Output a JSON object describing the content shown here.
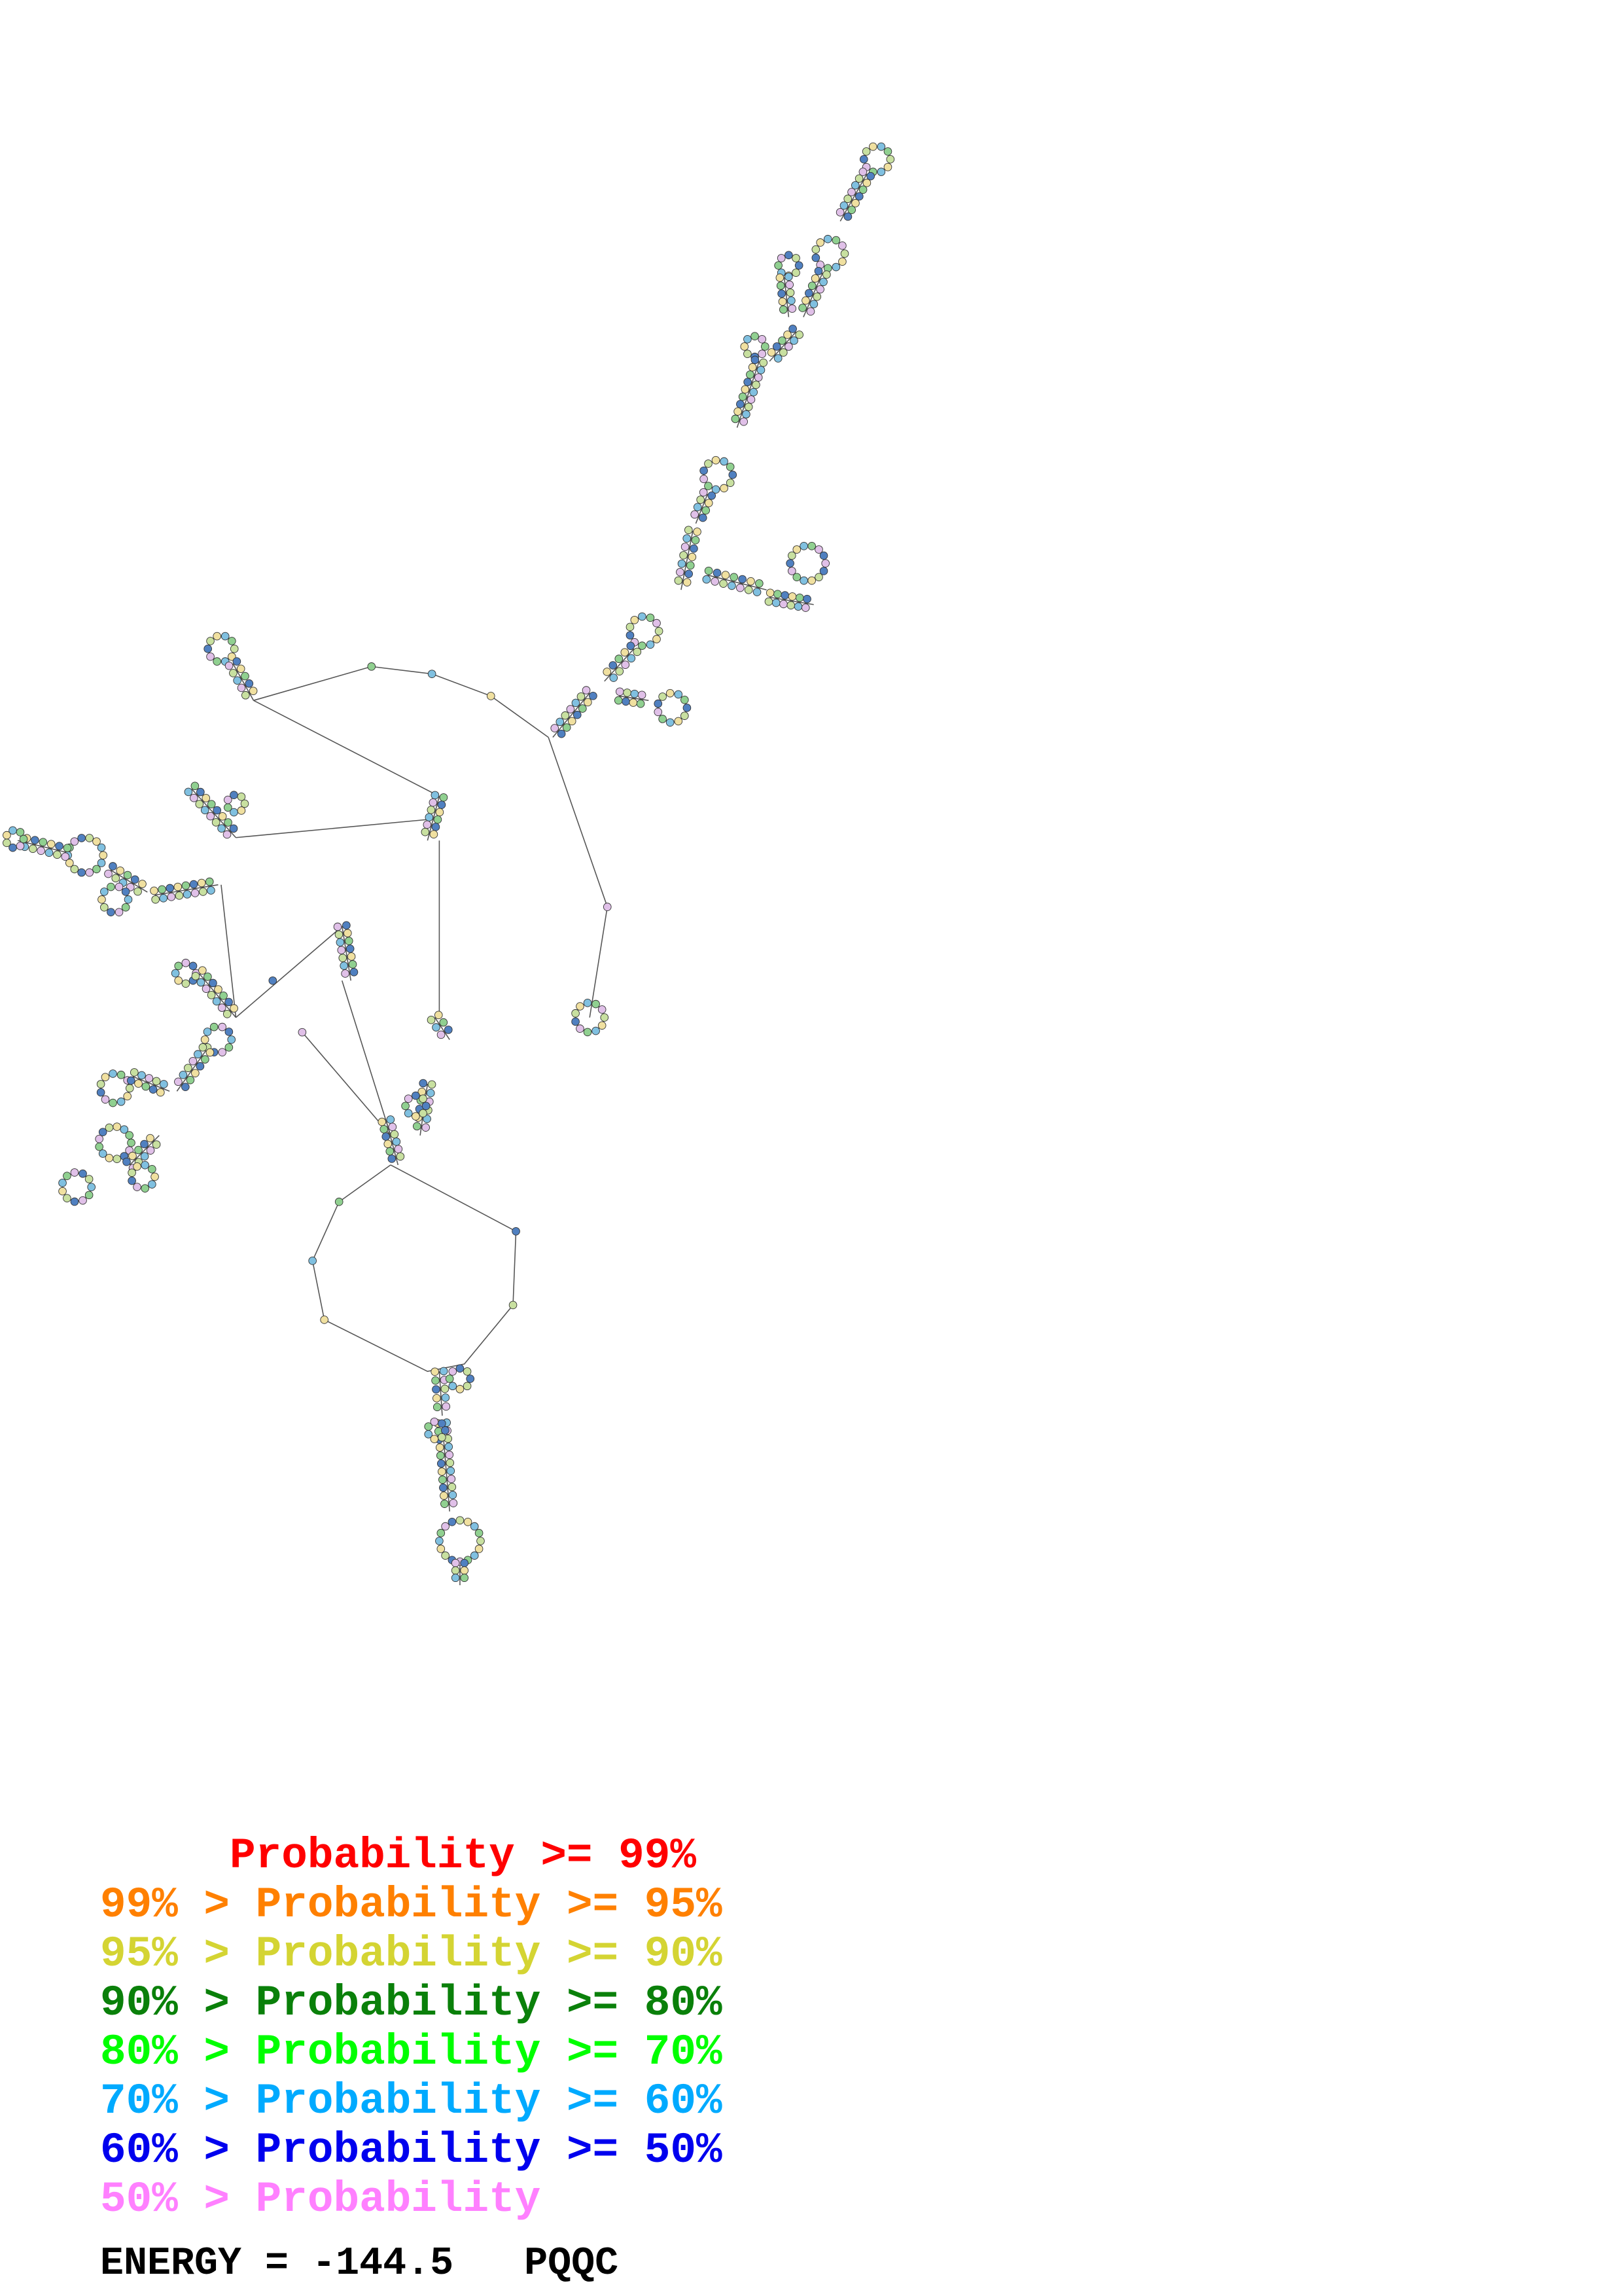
{
  "legend": [
    {
      "prefix": "    ",
      "label": "Probability",
      "suffix": ">= 99%",
      "color": "#ff0000"
    },
    {
      "prefix": "99% >",
      "label": "Probability",
      "suffix": ">= 95%",
      "color": "#ff8000"
    },
    {
      "prefix": "95% >",
      "label": "Probability",
      "suffix": ">= 90%",
      "color": "#d4d433"
    },
    {
      "prefix": "90% >",
      "label": "Probability",
      "suffix": ">= 80%",
      "color": "#0a800a"
    },
    {
      "prefix": "80% >",
      "label": "Probability",
      "suffix": ">= 70%",
      "color": "#00ff00"
    },
    {
      "prefix": "70% >",
      "label": "Probability",
      "suffix": ">= 60%",
      "color": "#00aaff"
    },
    {
      "prefix": "60% >",
      "label": "Probability",
      "suffix": ">= 50%",
      "color": "#0000ee"
    },
    {
      "prefix": "50% >",
      "label": "Probability",
      "suffix": "",
      "color": "#ff80ff"
    }
  ],
  "energy": {
    "label": "ENERGY =",
    "value": "-144.5",
    "name": "PQQC"
  },
  "nucleotide_colors": [
    "#f0e0a0",
    "#80c0e0",
    "#90d090",
    "#e0c0e8",
    "#5080c0",
    "#c8e0a0"
  ]
}
